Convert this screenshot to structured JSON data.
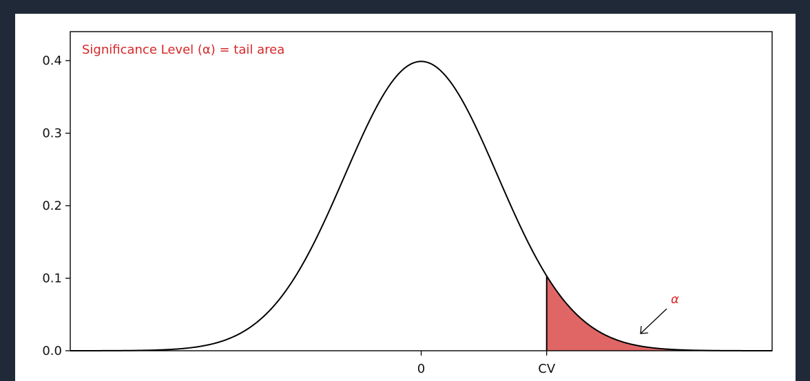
{
  "chart_data": {
    "type": "area",
    "title": "",
    "xlabel": "",
    "ylabel": "",
    "xlim": [
      -4.6,
      4.6
    ],
    "ylim": [
      0,
      0.4
    ],
    "x_ticks": [
      {
        "value": 0,
        "label": "0"
      },
      {
        "value": 1.645,
        "label": "CV"
      }
    ],
    "y_ticks": [
      {
        "value": 0.0,
        "label": "0.0"
      },
      {
        "value": 0.1,
        "label": "0.1"
      },
      {
        "value": 0.2,
        "label": "0.2"
      },
      {
        "value": 0.3,
        "label": "0.3"
      },
      {
        "value": 0.4,
        "label": "0.4"
      }
    ],
    "curve": {
      "distribution": "standard normal pdf",
      "mean": 0,
      "sd": 1,
      "peak": 0.399
    },
    "critical_value": 1.645,
    "shaded_region": {
      "from": 1.645,
      "to": 4.6,
      "label": "α"
    },
    "annotations": {
      "header": "Significance Level (α) = tail area",
      "alpha_label": "α"
    },
    "grid": false,
    "colors": {
      "background": "#1f2937",
      "panel": "#ffffff",
      "curve": "#000000",
      "shade": "#e06666",
      "annotation": "#d62728"
    }
  }
}
